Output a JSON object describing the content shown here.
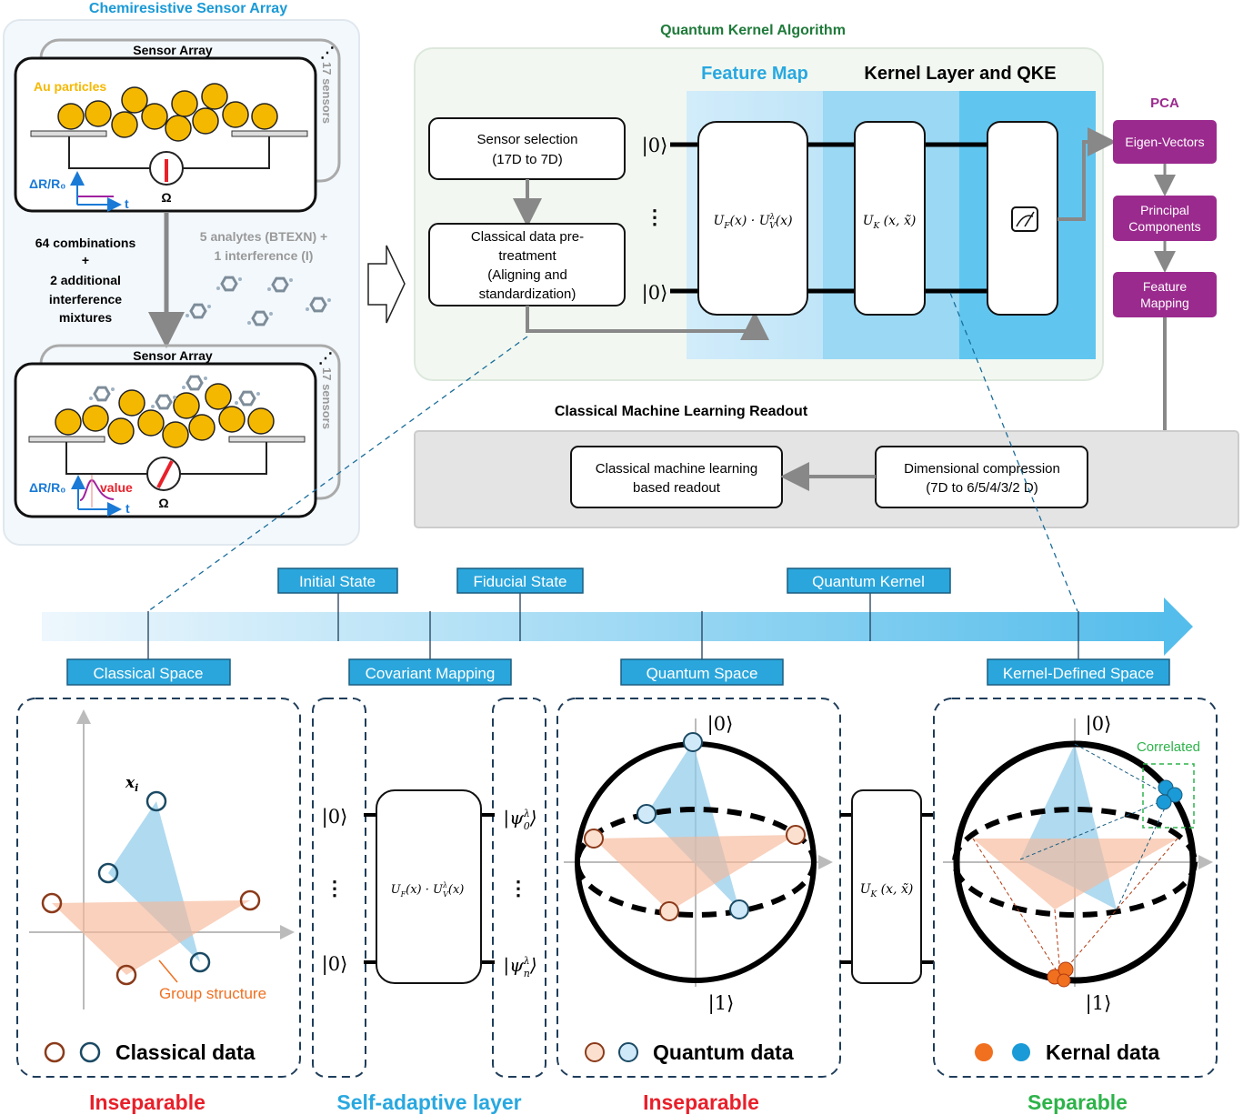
{
  "colors": {
    "sensor_title": "#1a9ad6",
    "au_gold": "#f5b800",
    "qka_green": "#1f7a3a",
    "feature_map_blue": "#29a8e0",
    "pca_purple": "#9b2a8e",
    "label_blue": "#2aa6dc",
    "inseparable_red": "#e8202a",
    "separable_green": "#2db34a",
    "group_orange": "#f07020"
  },
  "sensor_panel": {
    "title": "Chemiresistive Sensor Array",
    "array_label": "Sensor Array",
    "sensors_count": "17 sensors",
    "au_label": "Au particles",
    "delta_label": "ΔR/R₀",
    "t_label": "t",
    "ohm": "Ω",
    "value_label": "value",
    "combinations": [
      "64 combinations",
      "+",
      "2 additional",
      "interference",
      "mixtures"
    ],
    "analytes": [
      "5 analytes (BTEXN) +",
      "1 interference (I)"
    ]
  },
  "qka": {
    "title": "Quantum Kernel Algorithm",
    "feature_map": "Feature Map",
    "kernel_layer": "Kernel Layer and QKE",
    "sensor_selection": [
      "Sensor selection",
      "(17D to 7D)"
    ],
    "pretreatment": [
      "Classical data pre-",
      "treatment",
      "(Aligning and",
      "standardization)"
    ],
    "ket0": "|0⟩",
    "vdots": "⋮",
    "measure_icon": "meter-icon"
  },
  "gates": {
    "u": "U",
    "f": "F",
    "v": "V",
    "k": "K",
    "lambda": "λ",
    "x": "(x)",
    "dot": " · ",
    "xx": " (x, x̃)"
  },
  "pca": {
    "title": "PCA",
    "eigen": "Eigen-Vectors",
    "principal": [
      "Principal",
      "Components"
    ],
    "feature_mapping": [
      "Feature",
      "Mapping"
    ]
  },
  "readout": {
    "title": "Classical Machine Learning Readout",
    "ml_box": [
      "Classical machine learning",
      "based readout"
    ],
    "compression_box": [
      "Dimensional compression",
      "(7D to 6/5/4/3/2 D)"
    ]
  },
  "timeline": {
    "top": [
      "Initial State",
      "Fiducial State",
      "Quantum Kernel"
    ],
    "bottom": [
      "Classical Space",
      "Covariant Mapping",
      "Quantum Space",
      "Kernel-Defined Space"
    ]
  },
  "panels": {
    "classical": {
      "xi": "x",
      "xi_sub": "i",
      "group": "Group structure",
      "legend": "Classical data",
      "verdict": "Inseparable"
    },
    "adaptive": {
      "ket0": "|0⟩",
      "psi": "ψ",
      "sub0": "0",
      "subn": "n",
      "lambda": "λ",
      "verdict": "Self-adaptive layer"
    },
    "quantum": {
      "ket0": "|0⟩",
      "ket1": "|1⟩",
      "legend": "Quantum data",
      "verdict": "Inseparable"
    },
    "kernel": {
      "ket0": "|0⟩",
      "ket1": "|1⟩",
      "correlated": "Correlated",
      "legend": "Kernal data",
      "verdict": "Separable"
    }
  }
}
